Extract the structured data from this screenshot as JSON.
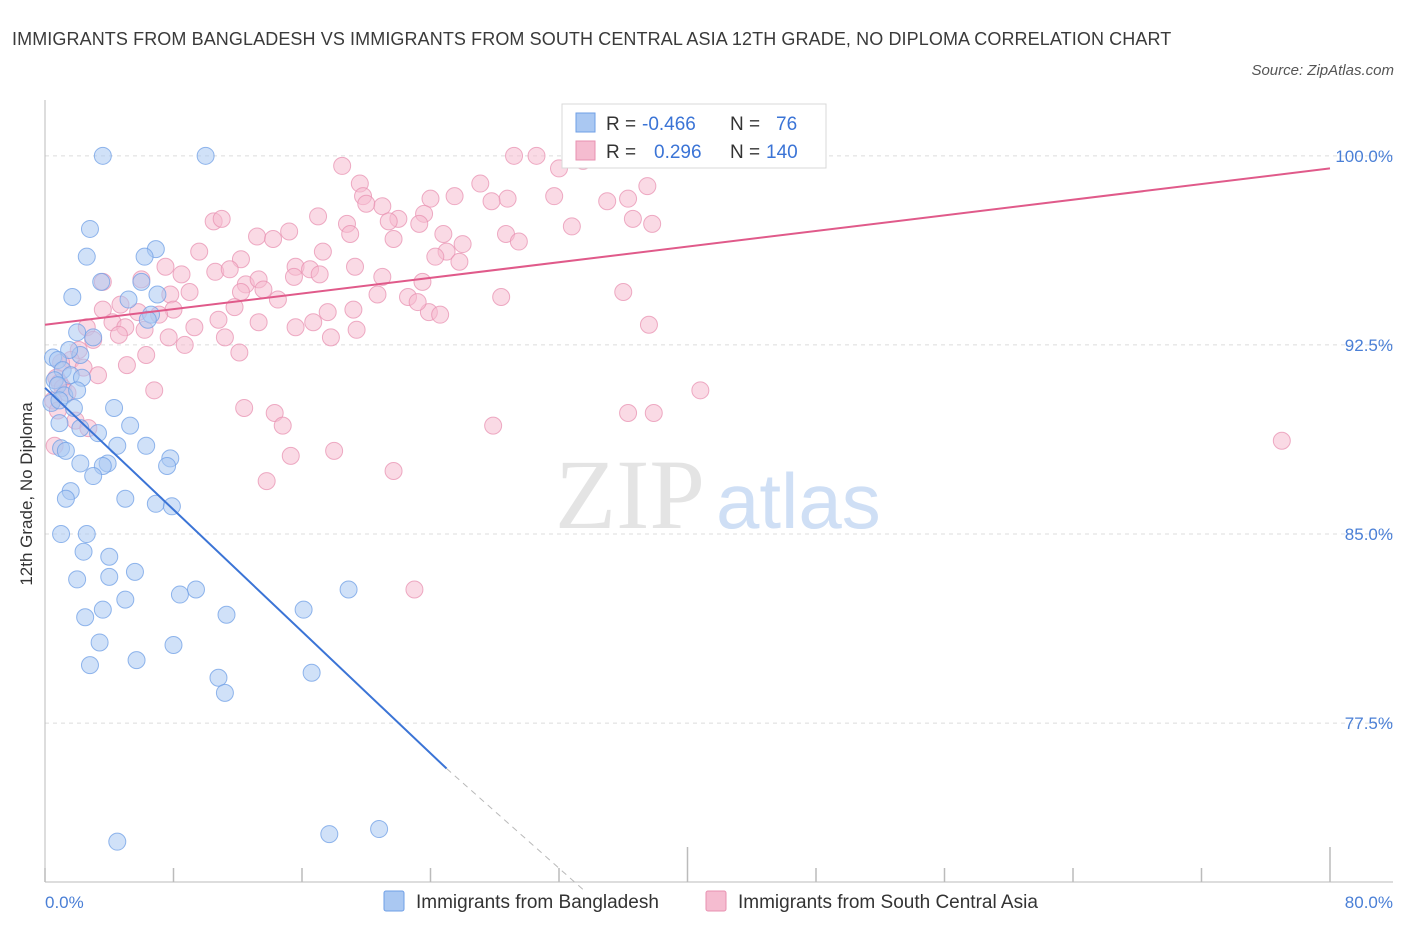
{
  "title": "IMMIGRANTS FROM BANGLADESH VS IMMIGRANTS FROM SOUTH CENTRAL ASIA 12TH GRADE, NO DIPLOMA CORRELATION CHART",
  "source": "Source: ZipAtlas.com",
  "watermark": {
    "zip": "ZIP",
    "atlas": "atlas"
  },
  "chart_data": {
    "type": "scatter",
    "xlabel": "",
    "ylabel": "12th Grade, No Diploma",
    "xlim": [
      0,
      80
    ],
    "ylim": [
      71.2,
      101.5
    ],
    "x_tick_labels": [
      "0.0%",
      "80.0%"
    ],
    "y_ticks": [
      77.5,
      85.0,
      92.5,
      100.0
    ],
    "y_tick_labels": [
      "77.5%",
      "85.0%",
      "92.5%",
      "100.0%"
    ],
    "grid": true,
    "legend": {
      "placement": "top-center",
      "entries": [
        {
          "r_label": "R =",
          "r": "-0.466",
          "n_label": "N =",
          "n": "76"
        },
        {
          "r_label": "R =",
          "r": "0.296",
          "n_label": "N =",
          "n": "140"
        }
      ]
    },
    "series": [
      {
        "name": "Immigrants from Bangladesh",
        "color": "#6f9fe6",
        "fill": "#aac8f2",
        "trend": {
          "x0": 0.0,
          "y0": 90.8,
          "x1": 25.0,
          "y1": 75.7,
          "dash_to_x": 33.5,
          "dash_to_y": 70.9,
          "color": "#3b74d6"
        },
        "points": [
          [
            3.6,
            100
          ],
          [
            10,
            100
          ],
          [
            2.8,
            97.1
          ],
          [
            6.9,
            96.3
          ],
          [
            2.6,
            96
          ],
          [
            6.2,
            96
          ],
          [
            1.7,
            94.4
          ],
          [
            3.5,
            95
          ],
          [
            6,
            95
          ],
          [
            5.2,
            94.3
          ],
          [
            7,
            94.5
          ],
          [
            6.6,
            93.7
          ],
          [
            6.4,
            93.5
          ],
          [
            3,
            92.8
          ],
          [
            2,
            93
          ],
          [
            2.2,
            92.1
          ],
          [
            1.5,
            92.3
          ],
          [
            0.5,
            92
          ],
          [
            0.8,
            91.9
          ],
          [
            1.1,
            91.5
          ],
          [
            1.6,
            91.3
          ],
          [
            2.3,
            91.2
          ],
          [
            0.6,
            91.1
          ],
          [
            0.8,
            90.9
          ],
          [
            1.2,
            90.5
          ],
          [
            2,
            90.7
          ],
          [
            0.4,
            90.2
          ],
          [
            0.9,
            90.3
          ],
          [
            1.8,
            90
          ],
          [
            4.3,
            90
          ],
          [
            0.9,
            89.4
          ],
          [
            2.2,
            89.2
          ],
          [
            5.3,
            89.3
          ],
          [
            3.3,
            89
          ],
          [
            1,
            88.4
          ],
          [
            4.5,
            88.5
          ],
          [
            6.3,
            88.5
          ],
          [
            1.3,
            88.3
          ],
          [
            2.2,
            87.8
          ],
          [
            3.9,
            87.8
          ],
          [
            3.6,
            87.7
          ],
          [
            7.8,
            88
          ],
          [
            7.6,
            87.7
          ],
          [
            3,
            87.3
          ],
          [
            1.6,
            86.7
          ],
          [
            1.3,
            86.4
          ],
          [
            5,
            86.4
          ],
          [
            6.9,
            86.2
          ],
          [
            7.9,
            86.1
          ],
          [
            1,
            85
          ],
          [
            2.6,
            85
          ],
          [
            2.4,
            84.3
          ],
          [
            4,
            84.1
          ],
          [
            5.6,
            83.5
          ],
          [
            2,
            83.2
          ],
          [
            4,
            83.3
          ],
          [
            9.4,
            82.8
          ],
          [
            8.4,
            82.6
          ],
          [
            18.9,
            82.8
          ],
          [
            5,
            82.4
          ],
          [
            3.6,
            82
          ],
          [
            2.5,
            81.7
          ],
          [
            11.3,
            81.8
          ],
          [
            16.1,
            82
          ],
          [
            3.4,
            80.7
          ],
          [
            8,
            80.6
          ],
          [
            5.7,
            80
          ],
          [
            2.8,
            79.8
          ],
          [
            10.8,
            79.3
          ],
          [
            16.6,
            79.5
          ],
          [
            11.2,
            78.7
          ],
          [
            4.5,
            72.8
          ],
          [
            17.7,
            73.1
          ],
          [
            20.8,
            73.3
          ]
        ]
      },
      {
        "name": "Immigrants from South Central Asia",
        "color": "#e891b1",
        "fill": "#f5bcd0",
        "trend": {
          "x0": 0.0,
          "y0": 93.3,
          "x1": 80.0,
          "y1": 99.5,
          "color": "#e05a8a"
        },
        "points": [
          [
            29.2,
            100
          ],
          [
            30.6,
            100
          ],
          [
            18.5,
            99.6
          ],
          [
            19.6,
            98.9
          ],
          [
            27.1,
            98.9
          ],
          [
            32,
            99.5
          ],
          [
            33.5,
            99.8
          ],
          [
            21,
            98
          ],
          [
            24,
            98.3
          ],
          [
            25.5,
            98.4
          ],
          [
            28.8,
            98.3
          ],
          [
            31.7,
            98.4
          ],
          [
            35,
            98.2
          ],
          [
            36.3,
            98.3
          ],
          [
            37.5,
            98.8
          ],
          [
            19.8,
            98.4
          ],
          [
            22,
            97.5
          ],
          [
            23.6,
            97.7
          ],
          [
            27.8,
            98.2
          ],
          [
            20,
            98.1
          ],
          [
            10.5,
            97.4
          ],
          [
            11,
            97.5
          ],
          [
            17,
            97.6
          ],
          [
            18.8,
            97.3
          ],
          [
            21.4,
            97.4
          ],
          [
            23.3,
            97.3
          ],
          [
            32.8,
            97.2
          ],
          [
            36.6,
            97.5
          ],
          [
            37.8,
            97.3
          ],
          [
            13.2,
            96.8
          ],
          [
            14.2,
            96.7
          ],
          [
            15.2,
            97
          ],
          [
            19,
            96.9
          ],
          [
            24.8,
            96.9
          ],
          [
            26,
            96.5
          ],
          [
            28.7,
            96.9
          ],
          [
            29.5,
            96.6
          ],
          [
            21.7,
            96.7
          ],
          [
            25,
            96.2
          ],
          [
            9.6,
            96.2
          ],
          [
            12.2,
            95.9
          ],
          [
            17.3,
            96.2
          ],
          [
            24.3,
            96
          ],
          [
            25.8,
            95.8
          ],
          [
            7.5,
            95.6
          ],
          [
            8.5,
            95.3
          ],
          [
            10.6,
            95.4
          ],
          [
            11.5,
            95.5
          ],
          [
            15.6,
            95.6
          ],
          [
            16.5,
            95.5
          ],
          [
            17.1,
            95.3
          ],
          [
            19.3,
            95.6
          ],
          [
            15.5,
            95.2
          ],
          [
            6,
            95.1
          ],
          [
            3.6,
            95
          ],
          [
            12.5,
            94.9
          ],
          [
            13.3,
            95.1
          ],
          [
            21,
            95.2
          ],
          [
            23.5,
            95
          ],
          [
            12.2,
            94.6
          ],
          [
            13.6,
            94.7
          ],
          [
            14.5,
            94.3
          ],
          [
            20.7,
            94.5
          ],
          [
            7.8,
            94.5
          ],
          [
            9,
            94.6
          ],
          [
            28.4,
            94.4
          ],
          [
            36,
            94.6
          ],
          [
            5.8,
            93.8
          ],
          [
            4.7,
            94.1
          ],
          [
            3.6,
            93.9
          ],
          [
            8,
            93.9
          ],
          [
            11.8,
            94
          ],
          [
            17.6,
            93.8
          ],
          [
            19.2,
            93.9
          ],
          [
            22.6,
            94.4
          ],
          [
            23.9,
            93.8
          ],
          [
            23.2,
            94.2
          ],
          [
            2.6,
            93.2
          ],
          [
            4.2,
            93.4
          ],
          [
            5,
            93.2
          ],
          [
            6.2,
            93.1
          ],
          [
            7.1,
            93.7
          ],
          [
            9.3,
            93.2
          ],
          [
            10.8,
            93.5
          ],
          [
            11.2,
            92.8
          ],
          [
            13.3,
            93.4
          ],
          [
            15.6,
            93.2
          ],
          [
            16.7,
            93.4
          ],
          [
            24.6,
            93.7
          ],
          [
            37.6,
            93.3
          ],
          [
            19.4,
            93.1
          ],
          [
            4.6,
            92.9
          ],
          [
            7.7,
            92.8
          ],
          [
            3,
            92.7
          ],
          [
            8.7,
            92.5
          ],
          [
            12.1,
            92.2
          ],
          [
            17.8,
            92.8
          ],
          [
            2.1,
            92.3
          ],
          [
            1.6,
            91.9
          ],
          [
            5.1,
            91.7
          ],
          [
            6.3,
            92.1
          ],
          [
            1,
            91.8
          ],
          [
            2.4,
            91.6
          ],
          [
            3.3,
            91.3
          ],
          [
            0.7,
            91.2
          ],
          [
            0.9,
            91
          ],
          [
            1.1,
            90.8
          ],
          [
            1.4,
            90.6
          ],
          [
            6.8,
            90.7
          ],
          [
            0.5,
            90.3
          ],
          [
            0.8,
            89.9
          ],
          [
            1.9,
            89.5
          ],
          [
            12.4,
            90
          ],
          [
            14.3,
            89.8
          ],
          [
            36.3,
            89.8
          ],
          [
            37.9,
            89.8
          ],
          [
            40.8,
            90.7
          ],
          [
            2.7,
            89.2
          ],
          [
            14.8,
            89.3
          ],
          [
            27.9,
            89.3
          ],
          [
            0.6,
            88.5
          ],
          [
            15.3,
            88.1
          ],
          [
            18,
            88.3
          ],
          [
            77,
            88.7
          ],
          [
            13.8,
            87.1
          ],
          [
            21.7,
            87.5
          ],
          [
            23,
            82.8
          ]
        ]
      }
    ]
  }
}
